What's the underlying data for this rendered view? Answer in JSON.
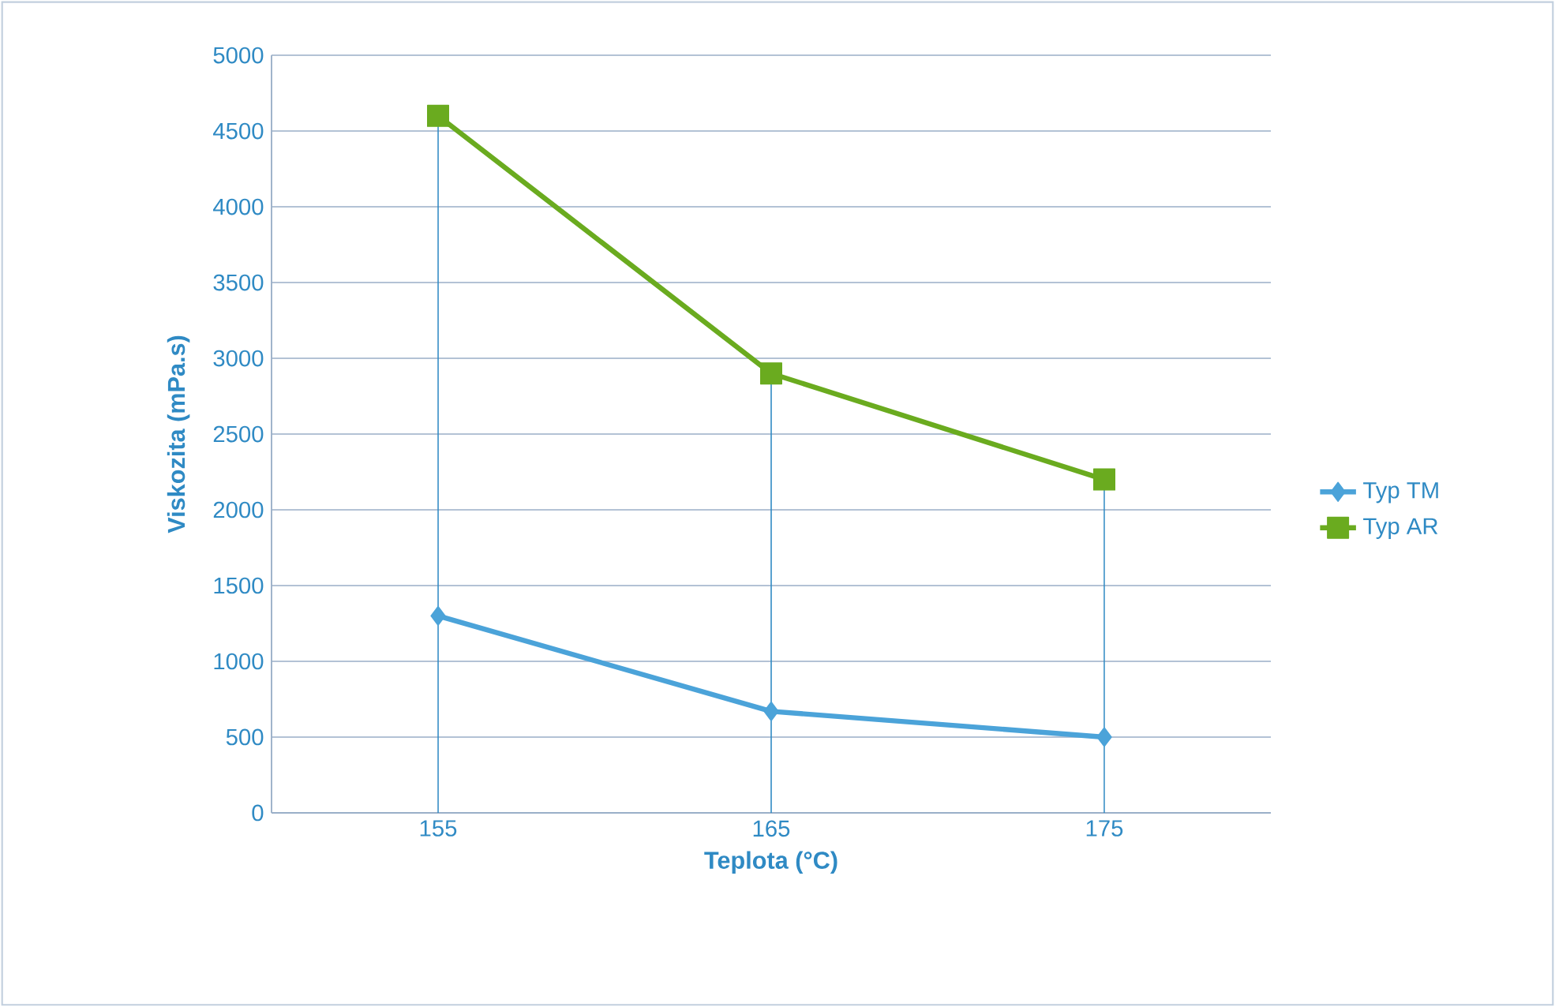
{
  "chart_data": {
    "type": "line",
    "xlabel": "Teplota (°C)",
    "ylabel": "Viskozita (mPa.s)",
    "categories": [
      "155",
      "165",
      "175"
    ],
    "series": [
      {
        "name": "Typ TM",
        "color": "#4ba3d9",
        "marker": "diamond",
        "values": [
          1300,
          670,
          500
        ]
      },
      {
        "name": "Typ AR",
        "color": "#6aab1f",
        "marker": "square",
        "values": [
          4600,
          2900,
          2200
        ],
        "errors": [
          [
            0,
            4600
          ],
          [
            0,
            2900
          ],
          [
            0,
            2200
          ]
        ]
      }
    ],
    "ylim": [
      0,
      5000
    ],
    "yticks": [
      0,
      500,
      1000,
      1500,
      2000,
      2500,
      3000,
      3500,
      4000,
      4500,
      5000
    ],
    "grid": "y",
    "legend": "right"
  }
}
